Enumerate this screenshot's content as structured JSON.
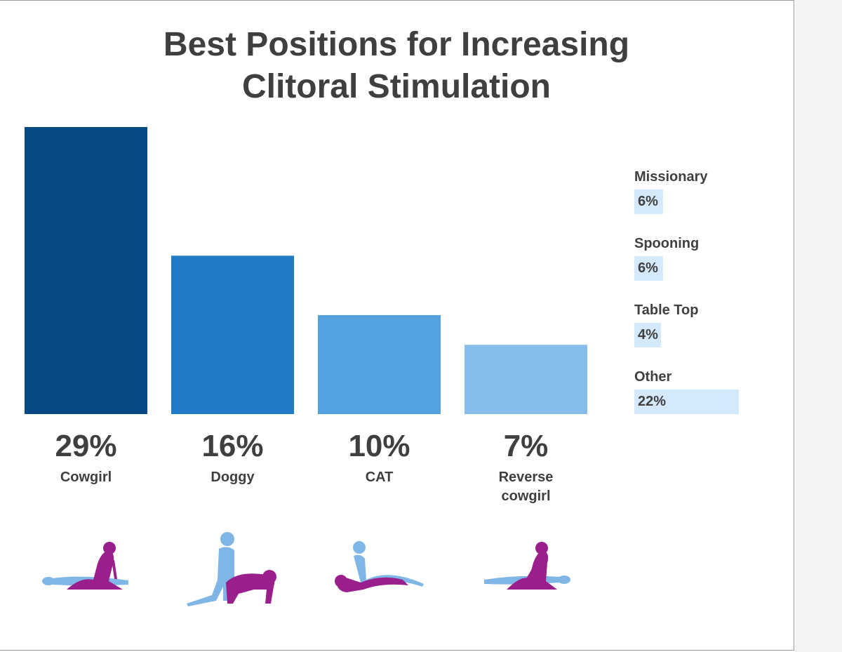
{
  "chart_data": {
    "type": "bar",
    "title": "Best Positions for Increasing Clitoral Stimulation",
    "title_lines": [
      "Best Positions for Increasing",
      "Clitoral Stimulation"
    ],
    "categories": [
      "Cowgirl",
      "Doggy",
      "CAT",
      "Reverse cowgirl"
    ],
    "category_lines": [
      [
        "Cowgirl"
      ],
      [
        "Doggy"
      ],
      [
        "CAT"
      ],
      [
        "Reverse",
        "cowgirl"
      ]
    ],
    "values": [
      29,
      16,
      10,
      7
    ],
    "value_labels": [
      "29%",
      "16%",
      "10%",
      "7%"
    ],
    "bar_colors": [
      "#074a83",
      "#207bc6",
      "#53a1de",
      "#87bdea"
    ],
    "ylim": [
      0,
      29
    ],
    "xlabel": "",
    "ylabel": "",
    "grid": false,
    "side_series": {
      "categories": [
        "Missionary",
        "Spooning",
        "Table Top",
        "Other"
      ],
      "values": [
        6,
        6,
        4,
        22
      ],
      "value_labels": [
        "6%",
        "6%",
        "4%",
        "22%"
      ],
      "xlim": [
        0,
        22
      ],
      "bar_color": "#d4e9fb"
    }
  },
  "icons": [
    "cowgirl-position-icon",
    "doggy-position-icon",
    "cat-position-icon",
    "reverse-cowgirl-position-icon"
  ],
  "colors": {
    "figure_light": "#7fb6e6",
    "figure_magenta": "#9a1f8c",
    "text": "#3f3f3f"
  }
}
